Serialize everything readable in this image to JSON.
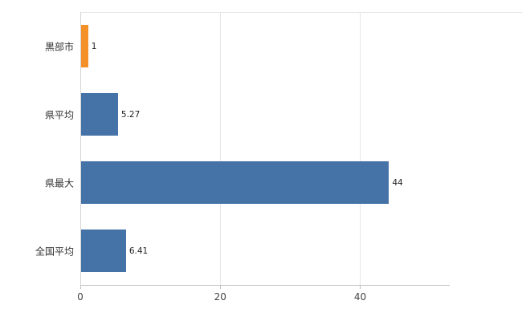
{
  "chart_data": {
    "type": "bar",
    "orientation": "horizontal",
    "title": "",
    "xlabel": "",
    "ylabel": "",
    "categories": [
      "黒部市",
      "県平均",
      "県最大",
      "全国平均"
    ],
    "values": [
      1,
      5.27,
      44,
      6.41
    ],
    "value_labels": [
      "1",
      "5.27",
      "44",
      "6.41"
    ],
    "bar_colors": [
      "#f49028",
      "#4572a7",
      "#4572a7",
      "#4572a7"
    ],
    "xlim": [
      0,
      52.8
    ],
    "x_ticks": [
      0,
      20,
      40
    ],
    "x_tick_labels": [
      "0",
      "20",
      "40"
    ],
    "grid": true,
    "legend": false,
    "background_color": "#ffffff",
    "gridline_color": "#e6e6e6",
    "axis_color": "#c0c0c0",
    "left_axis_color": "#d4d4d4",
    "category_label_color": "#333333",
    "value_label_color": "#222222",
    "tick_label_color": "#444444"
  }
}
